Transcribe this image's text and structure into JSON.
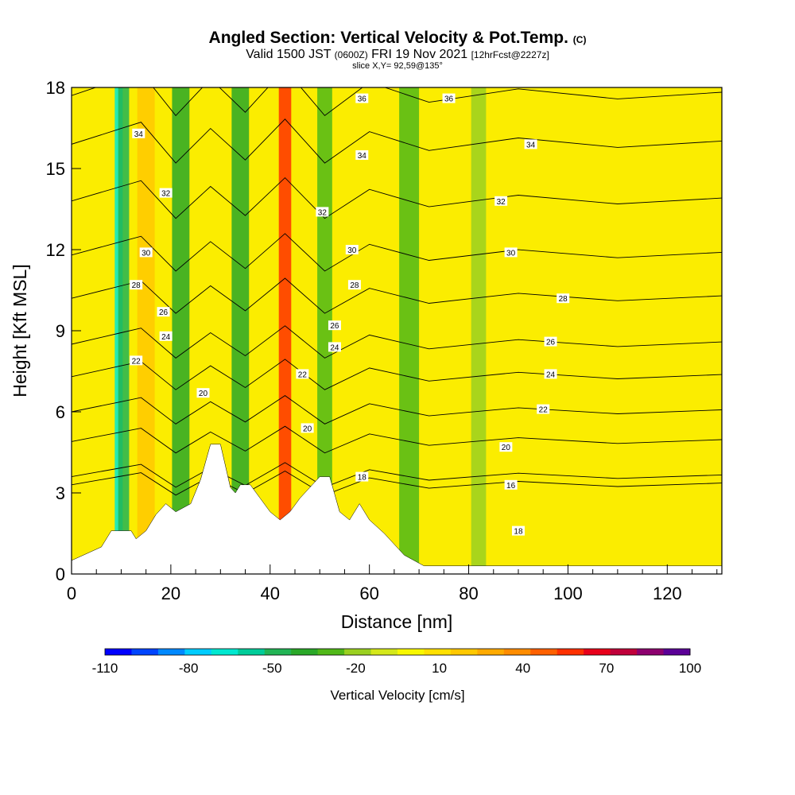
{
  "header": {
    "title": "Angled Section: Vertical Velocity & Pot.Temp.",
    "title_unit": "(C)",
    "valid_main": "Valid 1500 JST",
    "valid_z": "(0600Z)",
    "valid_date": "FRI 19 Nov 2021",
    "forecast": "[12hrFcst@2227z]",
    "slice": "slice X,Y= 92,59@135°"
  },
  "chart_data": {
    "type": "heatmap",
    "title": "Angled Section: Vertical Velocity & Pot.Temp. (C)",
    "xlabel": "Distance [nm]",
    "ylabel": "Height [Kft MSL]",
    "xlim": [
      0,
      131
    ],
    "ylim": [
      0,
      18
    ],
    "xticks": [
      0,
      20,
      40,
      60,
      80,
      100,
      120
    ],
    "yticks": [
      0,
      3,
      6,
      9,
      12,
      15,
      18
    ],
    "colorbar": {
      "label": "Vertical Velocity [cm/s]",
      "tick_labels": [
        "-110",
        "-80",
        "-50",
        "-20",
        "10",
        "40",
        "70",
        "100"
      ],
      "tick_values": [
        -110,
        -80,
        -50,
        -20,
        10,
        40,
        70,
        100
      ],
      "bins": [
        -110,
        -100,
        -90,
        -80,
        -70,
        -60,
        -50,
        -40,
        -30,
        -20,
        -10,
        0,
        10,
        20,
        30,
        40,
        50,
        60,
        70,
        80,
        90,
        100
      ],
      "colors": [
        "#0000ff",
        "#0044ff",
        "#0088ff",
        "#00ccff",
        "#00e8d0",
        "#00cc99",
        "#22b455",
        "#2aa828",
        "#50b818",
        "#9ad020",
        "#d4e81a",
        "#f8f800",
        "#ffe000",
        "#ffc800",
        "#ffaa00",
        "#ff8c00",
        "#ff6000",
        "#ff3000",
        "#e8001a",
        "#c0003a",
        "#8c006e",
        "#5a0096"
      ]
    },
    "background_velocity": "5 to 10 cm/s",
    "velocity_bands": [
      {
        "x": 9.5,
        "w": 1.6,
        "v": -70
      },
      {
        "x": 10.5,
        "w": 2.2,
        "v": -45
      },
      {
        "x": 15,
        "w": 3.5,
        "v": 25
      },
      {
        "x": 22,
        "w": 3.5,
        "v": -35
      },
      {
        "x": 34,
        "w": 3.5,
        "v": -40
      },
      {
        "x": 43,
        "w": 2.5,
        "v": 60
      },
      {
        "x": 51,
        "w": 3,
        "v": -30
      },
      {
        "x": 68,
        "w": 4,
        "v": -25
      },
      {
        "x": 82,
        "w": 3,
        "v": -15
      }
    ],
    "terrain_profile": [
      [
        0,
        0.5
      ],
      [
        6,
        1.0
      ],
      [
        8,
        1.6
      ],
      [
        12,
        1.6
      ],
      [
        13,
        1.3
      ],
      [
        15,
        1.6
      ],
      [
        17,
        2.2
      ],
      [
        19,
        2.6
      ],
      [
        21,
        2.3
      ],
      [
        24,
        2.6
      ],
      [
        26,
        3.5
      ],
      [
        28,
        4.8
      ],
      [
        30,
        4.8
      ],
      [
        32,
        3.2
      ],
      [
        33,
        3.0
      ],
      [
        34,
        3.3
      ],
      [
        36,
        3.3
      ],
      [
        38,
        2.8
      ],
      [
        40,
        2.3
      ],
      [
        42,
        2.0
      ],
      [
        44,
        2.3
      ],
      [
        46,
        2.8
      ],
      [
        48,
        3.2
      ],
      [
        50,
        3.6
      ],
      [
        52,
        3.6
      ],
      [
        54,
        2.3
      ],
      [
        56,
        2.0
      ],
      [
        58,
        2.6
      ],
      [
        60,
        2.0
      ],
      [
        63,
        1.5
      ],
      [
        67,
        0.7
      ],
      [
        71,
        0.3
      ],
      [
        131,
        0.3
      ]
    ],
    "theta_contours": [
      {
        "value": 16,
        "y": 3.3
      },
      {
        "value": 18,
        "y": 3.6
      },
      {
        "value": 20,
        "y": 4.9
      },
      {
        "value": 22,
        "y": 6.0
      },
      {
        "value": 24,
        "y": 7.3
      },
      {
        "value": 26,
        "y": 8.5
      },
      {
        "value": 28,
        "y": 10.2
      },
      {
        "value": 30,
        "y": 11.8
      },
      {
        "value": 32,
        "y": 13.8
      },
      {
        "value": 34,
        "y": 15.9
      },
      {
        "value": 36,
        "y": 17.7
      }
    ],
    "contour_labels": [
      {
        "text": "36",
        "x": 58.5,
        "y": 17.6
      },
      {
        "text": "36",
        "x": 76,
        "y": 17.6
      },
      {
        "text": "34",
        "x": 13.5,
        "y": 16.3
      },
      {
        "text": "34",
        "x": 58.5,
        "y": 15.5
      },
      {
        "text": "34",
        "x": 92.5,
        "y": 15.9
      },
      {
        "text": "32",
        "x": 19,
        "y": 14.1
      },
      {
        "text": "32",
        "x": 50.5,
        "y": 13.4
      },
      {
        "text": "32",
        "x": 86.5,
        "y": 13.8
      },
      {
        "text": "30",
        "x": 15,
        "y": 11.9
      },
      {
        "text": "30",
        "x": 56.5,
        "y": 12.0
      },
      {
        "text": "30",
        "x": 88.5,
        "y": 11.9
      },
      {
        "text": "28",
        "x": 13,
        "y": 10.7
      },
      {
        "text": "28",
        "x": 57,
        "y": 10.7
      },
      {
        "text": "28",
        "x": 99,
        "y": 10.2
      },
      {
        "text": "26",
        "x": 18.5,
        "y": 9.7
      },
      {
        "text": "26",
        "x": 53,
        "y": 9.2
      },
      {
        "text": "26",
        "x": 96.5,
        "y": 8.6
      },
      {
        "text": "24",
        "x": 19,
        "y": 8.8
      },
      {
        "text": "24",
        "x": 53,
        "y": 8.4
      },
      {
        "text": "24",
        "x": 96.5,
        "y": 7.4
      },
      {
        "text": "22",
        "x": 13,
        "y": 7.9
      },
      {
        "text": "22",
        "x": 46.5,
        "y": 7.4
      },
      {
        "text": "22",
        "x": 95,
        "y": 6.1
      },
      {
        "text": "20",
        "x": 26.5,
        "y": 6.7
      },
      {
        "text": "20",
        "x": 47.5,
        "y": 5.4
      },
      {
        "text": "20",
        "x": 87.5,
        "y": 4.7
      },
      {
        "text": "18",
        "x": 58.5,
        "y": 3.6
      },
      {
        "text": "16",
        "x": 88.5,
        "y": 3.3
      },
      {
        "text": "18",
        "x": 90,
        "y": 1.6
      }
    ]
  }
}
